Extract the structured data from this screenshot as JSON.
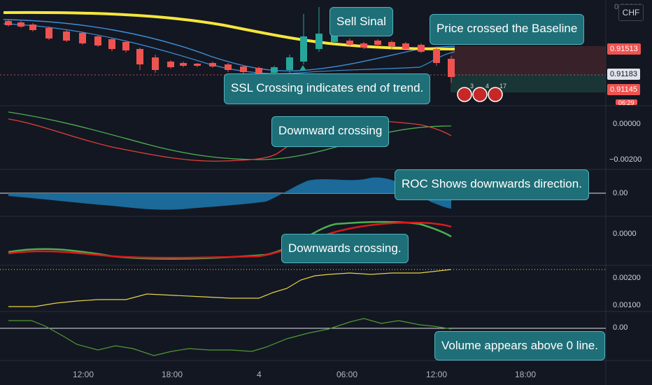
{
  "currency_button": "CHF",
  "callouts": {
    "sell_signal": "Sell Sinal",
    "baseline_cross": "Price crossed the Baseline",
    "ssl_crossing": "SSL Crossing indicates end of trend.",
    "downward_crossing": "Downward crossing",
    "roc": "ROC Shows downwards direction.",
    "downwards_crossing": "Downwards crossing.",
    "volume": "Volume appears above 0 line."
  },
  "price_axis": {
    "top_partial": "0.92000",
    "tag_red": "0.91513",
    "tag_white": "0.91183",
    "tag_red2": "0.91145",
    "tag_partial": "06:29"
  },
  "pane_axes": {
    "p2_a": "0.00000",
    "p2_b": "−0.00200",
    "p3": "0.00",
    "p4": "0.0000",
    "p5_a": "0.00200",
    "p5_b": "0.00100",
    "p6": "0.00"
  },
  "time_axis": [
    "12:00",
    "18:00",
    "4",
    "06:00",
    "12:00",
    "18:00"
  ],
  "event_badges": [
    "3",
    "4",
    "17"
  ],
  "colors": {
    "background": "#131722",
    "up_candle": "#26a69a",
    "down_candle": "#ef5350",
    "baseline": "#f5e63c",
    "callout_bg": "#1f6f78"
  }
}
